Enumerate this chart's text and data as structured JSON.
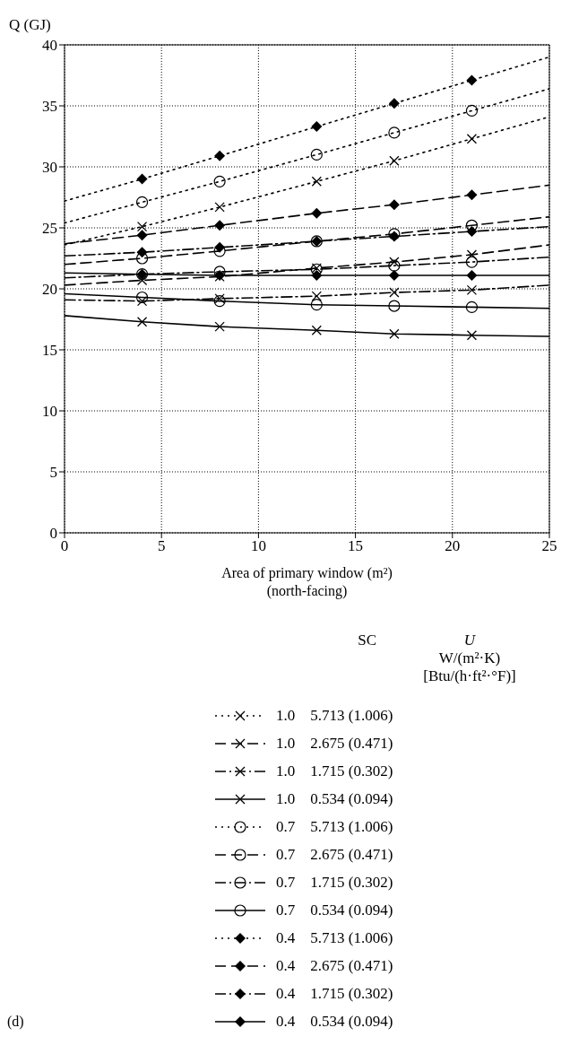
{
  "chart_data": {
    "type": "line",
    "ylabel": "Q (GJ)",
    "xlabel": "Area of primary window (m²)\n(north-facing)",
    "xlim": [
      0,
      25
    ],
    "xticks": [
      0,
      5,
      10,
      15,
      20,
      25
    ],
    "ylim": [
      0,
      40
    ],
    "yticks": [
      0,
      5,
      10,
      15,
      20,
      25,
      30,
      35,
      40
    ],
    "grid": true,
    "legend": "bottom",
    "annotations": [
      "SC",
      "U",
      "W/(m²·K)",
      "[Btu/(h·ft²·°F)]",
      "(d)"
    ],
    "x": [
      0,
      4,
      8,
      13,
      17,
      21,
      25
    ],
    "series": [
      {
        "name": "1.0    5.713 (1.006)",
        "color": "#000000",
        "line_style": "dotted",
        "marker": "cross",
        "values": [
          23.6,
          25.1,
          26.7,
          28.8,
          30.5,
          32.3,
          34.1
        ]
      },
      {
        "name": "1.0    2.675 (0.471)",
        "color": "#000000",
        "line_style": "dashed",
        "marker": "cross",
        "values": [
          20.3,
          20.7,
          21.0,
          21.7,
          22.2,
          22.8,
          23.6
        ]
      },
      {
        "name": "1.0    1.715 (0.302)",
        "color": "#000000",
        "line_style": "dashdot",
        "marker": "cross",
        "values": [
          19.1,
          19.0,
          19.2,
          19.4,
          19.7,
          19.9,
          20.3
        ]
      },
      {
        "name": "1.0    0.534 (0.094)",
        "color": "#000000",
        "line_style": "solid",
        "marker": "cross",
        "values": [
          17.8,
          17.3,
          16.9,
          16.6,
          16.3,
          16.2,
          16.1
        ]
      },
      {
        "name": "0.7    5.713 (1.006)",
        "color": "#000000",
        "line_style": "dotted",
        "marker": "circle",
        "values": [
          25.4,
          27.1,
          28.8,
          31.0,
          32.8,
          34.6,
          36.4
        ]
      },
      {
        "name": "0.7    2.675 (0.471)",
        "color": "#000000",
        "line_style": "dashed",
        "marker": "circle",
        "values": [
          22.0,
          22.5,
          23.1,
          23.9,
          24.5,
          25.2,
          25.9
        ]
      },
      {
        "name": "0.7    1.715 (0.302)",
        "color": "#000000",
        "line_style": "dashdot",
        "marker": "circle",
        "values": [
          20.9,
          21.2,
          21.4,
          21.6,
          21.9,
          22.2,
          22.6
        ]
      },
      {
        "name": "0.7    0.534 (0.094)",
        "color": "#000000",
        "line_style": "solid",
        "marker": "circle",
        "values": [
          19.6,
          19.3,
          19.0,
          18.7,
          18.6,
          18.5,
          18.4
        ]
      },
      {
        "name": "0.4    5.713 (1.006)",
        "color": "#000000",
        "line_style": "dotted",
        "marker": "diamond",
        "values": [
          27.2,
          29.0,
          30.9,
          33.3,
          35.2,
          37.1,
          39.0
        ]
      },
      {
        "name": "0.4    2.675 (0.471)",
        "color": "#000000",
        "line_style": "dashed",
        "marker": "diamond",
        "values": [
          23.7,
          24.4,
          25.2,
          26.2,
          26.9,
          27.7,
          28.5
        ]
      },
      {
        "name": "0.4    1.715 (0.302)",
        "color": "#000000",
        "line_style": "dashdot",
        "marker": "diamond",
        "values": [
          22.7,
          23.0,
          23.4,
          23.9,
          24.3,
          24.7,
          25.1
        ]
      },
      {
        "name": "0.4    0.534 (0.094)",
        "color": "#000000",
        "line_style": "solid",
        "marker": "diamond",
        "values": [
          21.3,
          21.2,
          21.1,
          21.1,
          21.1,
          21.1,
          21.1
        ]
      }
    ]
  }
}
